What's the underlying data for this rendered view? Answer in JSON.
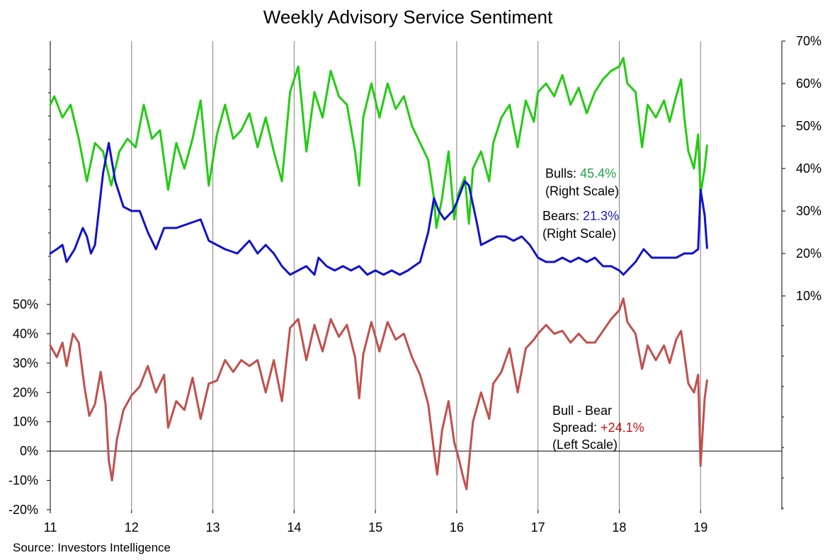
{
  "chart_data": {
    "type": "line",
    "title": "Weekly Advisory Service Sentiment",
    "source": "Source: Investors Intelligence",
    "x_axis": {
      "range": [
        2011,
        2020
      ],
      "ticks": [
        2011,
        2012,
        2013,
        2014,
        2015,
        2016,
        2017,
        2018,
        2019
      ],
      "tick_labels": [
        "11",
        "12",
        "13",
        "14",
        "15",
        "16",
        "17",
        "18",
        "19"
      ],
      "grid": true
    },
    "left_axis": {
      "range": [
        -20,
        50
      ],
      "ticks": [
        -20,
        -10,
        0,
        10,
        20,
        30,
        40,
        50
      ],
      "tick_labels": [
        "-20%",
        "-10%",
        "0%",
        "10%",
        "20%",
        "30%",
        "40%",
        "50%"
      ],
      "zero_line": true
    },
    "right_axis": {
      "range": [
        10,
        70
      ],
      "ticks": [
        10,
        20,
        30,
        40,
        50,
        60,
        70
      ],
      "tick_labels": [
        "10%",
        "20%",
        "30%",
        "40%",
        "50%",
        "60%",
        "70%"
      ]
    },
    "series": [
      {
        "name": "Bulls",
        "axis": "right",
        "color": "#22cc11",
        "points": [
          [
            2011.0,
            55
          ],
          [
            2011.05,
            57
          ],
          [
            2011.15,
            52
          ],
          [
            2011.25,
            55
          ],
          [
            2011.35,
            47
          ],
          [
            2011.45,
            37
          ],
          [
            2011.55,
            46
          ],
          [
            2011.65,
            44
          ],
          [
            2011.75,
            36
          ],
          [
            2011.85,
            44
          ],
          [
            2011.95,
            47
          ],
          [
            2012.05,
            45
          ],
          [
            2012.15,
            55
          ],
          [
            2012.25,
            47
          ],
          [
            2012.35,
            49
          ],
          [
            2012.45,
            35
          ],
          [
            2012.55,
            46
          ],
          [
            2012.65,
            40
          ],
          [
            2012.75,
            47
          ],
          [
            2012.85,
            56
          ],
          [
            2012.95,
            36
          ],
          [
            2013.05,
            48
          ],
          [
            2013.15,
            55
          ],
          [
            2013.25,
            47
          ],
          [
            2013.35,
            49
          ],
          [
            2013.45,
            53
          ],
          [
            2013.55,
            45
          ],
          [
            2013.65,
            52
          ],
          [
            2013.75,
            44
          ],
          [
            2013.85,
            37
          ],
          [
            2013.95,
            58
          ],
          [
            2014.05,
            64
          ],
          [
            2014.15,
            44
          ],
          [
            2014.25,
            58
          ],
          [
            2014.35,
            52
          ],
          [
            2014.45,
            63
          ],
          [
            2014.55,
            57
          ],
          [
            2014.65,
            55
          ],
          [
            2014.75,
            44
          ],
          [
            2014.8,
            36
          ],
          [
            2014.85,
            52
          ],
          [
            2014.95,
            60
          ],
          [
            2015.05,
            52
          ],
          [
            2015.15,
            60
          ],
          [
            2015.25,
            54
          ],
          [
            2015.35,
            57
          ],
          [
            2015.45,
            50
          ],
          [
            2015.55,
            46
          ],
          [
            2015.65,
            42
          ],
          [
            2015.72,
            33
          ],
          [
            2015.75,
            26
          ],
          [
            2015.82,
            33
          ],
          [
            2015.9,
            44
          ],
          [
            2015.97,
            28
          ],
          [
            2016.02,
            34
          ],
          [
            2016.1,
            38
          ],
          [
            2016.15,
            27
          ],
          [
            2016.2,
            40
          ],
          [
            2016.3,
            44
          ],
          [
            2016.4,
            37
          ],
          [
            2016.45,
            46
          ],
          [
            2016.55,
            52
          ],
          [
            2016.65,
            55
          ],
          [
            2016.75,
            45
          ],
          [
            2016.85,
            56
          ],
          [
            2016.95,
            51
          ],
          [
            2017.0,
            58
          ],
          [
            2017.1,
            60
          ],
          [
            2017.2,
            57
          ],
          [
            2017.3,
            62
          ],
          [
            2017.4,
            55
          ],
          [
            2017.5,
            59
          ],
          [
            2017.6,
            53
          ],
          [
            2017.7,
            58
          ],
          [
            2017.8,
            61
          ],
          [
            2017.9,
            63
          ],
          [
            2018.0,
            64
          ],
          [
            2018.05,
            66
          ],
          [
            2018.1,
            60
          ],
          [
            2018.2,
            58
          ],
          [
            2018.28,
            45
          ],
          [
            2018.35,
            55
          ],
          [
            2018.45,
            52
          ],
          [
            2018.55,
            56
          ],
          [
            2018.62,
            51
          ],
          [
            2018.7,
            57
          ],
          [
            2018.76,
            61
          ],
          [
            2018.8,
            52
          ],
          [
            2018.85,
            44
          ],
          [
            2018.92,
            40
          ],
          [
            2018.97,
            48
          ],
          [
            2019.0,
            34
          ],
          [
            2019.05,
            40
          ],
          [
            2019.08,
            45.4
          ]
        ]
      },
      {
        "name": "Bears",
        "axis": "right",
        "color": "#1111cc",
        "points": [
          [
            2011.0,
            20
          ],
          [
            2011.08,
            21
          ],
          [
            2011.15,
            22
          ],
          [
            2011.2,
            18
          ],
          [
            2011.3,
            21
          ],
          [
            2011.4,
            26
          ],
          [
            2011.45,
            24
          ],
          [
            2011.5,
            20
          ],
          [
            2011.55,
            22
          ],
          [
            2011.65,
            39
          ],
          [
            2011.72,
            46
          ],
          [
            2011.8,
            37
          ],
          [
            2011.9,
            31
          ],
          [
            2012.0,
            30
          ],
          [
            2012.1,
            30
          ],
          [
            2012.2,
            25
          ],
          [
            2012.3,
            21
          ],
          [
            2012.4,
            26
          ],
          [
            2012.55,
            26
          ],
          [
            2012.7,
            27
          ],
          [
            2012.85,
            28
          ],
          [
            2012.95,
            23
          ],
          [
            2013.05,
            22
          ],
          [
            2013.15,
            21
          ],
          [
            2013.3,
            20
          ],
          [
            2013.45,
            23
          ],
          [
            2013.55,
            20
          ],
          [
            2013.65,
            22
          ],
          [
            2013.75,
            20
          ],
          [
            2013.85,
            17
          ],
          [
            2013.95,
            15
          ],
          [
            2014.05,
            16
          ],
          [
            2014.15,
            17
          ],
          [
            2014.25,
            15
          ],
          [
            2014.3,
            19
          ],
          [
            2014.4,
            17
          ],
          [
            2014.5,
            16
          ],
          [
            2014.6,
            17
          ],
          [
            2014.7,
            16
          ],
          [
            2014.8,
            17
          ],
          [
            2014.9,
            15
          ],
          [
            2015.0,
            16
          ],
          [
            2015.1,
            15
          ],
          [
            2015.2,
            16
          ],
          [
            2015.3,
            15
          ],
          [
            2015.4,
            16
          ],
          [
            2015.55,
            18
          ],
          [
            2015.65,
            25
          ],
          [
            2015.72,
            33
          ],
          [
            2015.78,
            30
          ],
          [
            2015.85,
            28
          ],
          [
            2015.95,
            30
          ],
          [
            2016.0,
            32
          ],
          [
            2016.1,
            37
          ],
          [
            2016.15,
            36
          ],
          [
            2016.25,
            27
          ],
          [
            2016.3,
            22
          ],
          [
            2016.4,
            23
          ],
          [
            2016.5,
            24
          ],
          [
            2016.6,
            24
          ],
          [
            2016.7,
            23
          ],
          [
            2016.8,
            24
          ],
          [
            2016.9,
            22
          ],
          [
            2017.0,
            19
          ],
          [
            2017.1,
            18
          ],
          [
            2017.2,
            18
          ],
          [
            2017.3,
            19
          ],
          [
            2017.4,
            18
          ],
          [
            2017.5,
            19
          ],
          [
            2017.6,
            18
          ],
          [
            2017.7,
            19
          ],
          [
            2017.8,
            17
          ],
          [
            2017.9,
            17
          ],
          [
            2018.0,
            16
          ],
          [
            2018.05,
            15
          ],
          [
            2018.1,
            16
          ],
          [
            2018.2,
            18
          ],
          [
            2018.3,
            21
          ],
          [
            2018.4,
            19
          ],
          [
            2018.5,
            19
          ],
          [
            2018.6,
            19
          ],
          [
            2018.7,
            19
          ],
          [
            2018.8,
            20
          ],
          [
            2018.9,
            20
          ],
          [
            2018.97,
            21
          ],
          [
            2019.0,
            35
          ],
          [
            2019.05,
            29
          ],
          [
            2019.08,
            21.3
          ]
        ]
      },
      {
        "name": "Bull - Bear Spread",
        "axis": "left",
        "color": "#c0504d",
        "points": [
          [
            2011.0,
            36
          ],
          [
            2011.08,
            32
          ],
          [
            2011.15,
            37
          ],
          [
            2011.2,
            29
          ],
          [
            2011.28,
            40
          ],
          [
            2011.35,
            37
          ],
          [
            2011.42,
            22
          ],
          [
            2011.48,
            12
          ],
          [
            2011.55,
            16
          ],
          [
            2011.62,
            27
          ],
          [
            2011.68,
            16
          ],
          [
            2011.72,
            -3
          ],
          [
            2011.76,
            -10
          ],
          [
            2011.82,
            4
          ],
          [
            2011.9,
            14
          ],
          [
            2012.0,
            19
          ],
          [
            2012.1,
            22
          ],
          [
            2012.2,
            29
          ],
          [
            2012.3,
            20
          ],
          [
            2012.4,
            26
          ],
          [
            2012.45,
            8
          ],
          [
            2012.55,
            17
          ],
          [
            2012.65,
            14
          ],
          [
            2012.75,
            25
          ],
          [
            2012.85,
            11
          ],
          [
            2012.95,
            23
          ],
          [
            2013.05,
            24
          ],
          [
            2013.15,
            31
          ],
          [
            2013.25,
            27
          ],
          [
            2013.35,
            31
          ],
          [
            2013.45,
            29
          ],
          [
            2013.55,
            31
          ],
          [
            2013.65,
            20
          ],
          [
            2013.75,
            31
          ],
          [
            2013.85,
            17
          ],
          [
            2013.95,
            42
          ],
          [
            2014.05,
            45
          ],
          [
            2014.15,
            31
          ],
          [
            2014.25,
            43
          ],
          [
            2014.35,
            34
          ],
          [
            2014.45,
            45
          ],
          [
            2014.55,
            39
          ],
          [
            2014.65,
            43
          ],
          [
            2014.75,
            32
          ],
          [
            2014.8,
            18
          ],
          [
            2014.85,
            33
          ],
          [
            2014.95,
            44
          ],
          [
            2015.05,
            34
          ],
          [
            2015.15,
            44
          ],
          [
            2015.25,
            38
          ],
          [
            2015.35,
            40
          ],
          [
            2015.45,
            32
          ],
          [
            2015.55,
            26
          ],
          [
            2015.65,
            16
          ],
          [
            2015.72,
            0
          ],
          [
            2015.76,
            -8
          ],
          [
            2015.82,
            7
          ],
          [
            2015.9,
            17
          ],
          [
            2015.97,
            3
          ],
          [
            2016.02,
            -2
          ],
          [
            2016.08,
            -9
          ],
          [
            2016.12,
            -13
          ],
          [
            2016.2,
            10
          ],
          [
            2016.3,
            20
          ],
          [
            2016.4,
            11
          ],
          [
            2016.45,
            23
          ],
          [
            2016.55,
            27
          ],
          [
            2016.65,
            35
          ],
          [
            2016.75,
            20
          ],
          [
            2016.85,
            35
          ],
          [
            2016.95,
            38
          ],
          [
            2017.0,
            40
          ],
          [
            2017.1,
            43
          ],
          [
            2017.2,
            40
          ],
          [
            2017.3,
            41
          ],
          [
            2017.4,
            37
          ],
          [
            2017.5,
            40
          ],
          [
            2017.6,
            37
          ],
          [
            2017.7,
            37
          ],
          [
            2017.8,
            41
          ],
          [
            2017.9,
            45
          ],
          [
            2018.0,
            48
          ],
          [
            2018.05,
            52
          ],
          [
            2018.1,
            44
          ],
          [
            2018.2,
            40
          ],
          [
            2018.28,
            28
          ],
          [
            2018.35,
            36
          ],
          [
            2018.45,
            31
          ],
          [
            2018.55,
            36
          ],
          [
            2018.62,
            30
          ],
          [
            2018.7,
            38
          ],
          [
            2018.76,
            41
          ],
          [
            2018.8,
            33
          ],
          [
            2018.85,
            23
          ],
          [
            2018.92,
            20
          ],
          [
            2018.97,
            26
          ],
          [
            2019.0,
            -5
          ],
          [
            2019.05,
            18
          ],
          [
            2019.08,
            24.1
          ]
        ]
      }
    ],
    "annotations": [
      {
        "label": "Bulls: ",
        "value": "45.4%",
        "value_color": "#21a34a",
        "line2": "(Right Scale)"
      },
      {
        "label": "Bears: ",
        "value": "21.3%",
        "value_color": "#1a1acc",
        "line2": "(Right Scale)"
      },
      {
        "label": "Bull - Bear",
        "label2": "Spread: ",
        "value": "+24.1%",
        "value_color": "#cc1111",
        "line3": "(Left Scale)"
      }
    ]
  }
}
